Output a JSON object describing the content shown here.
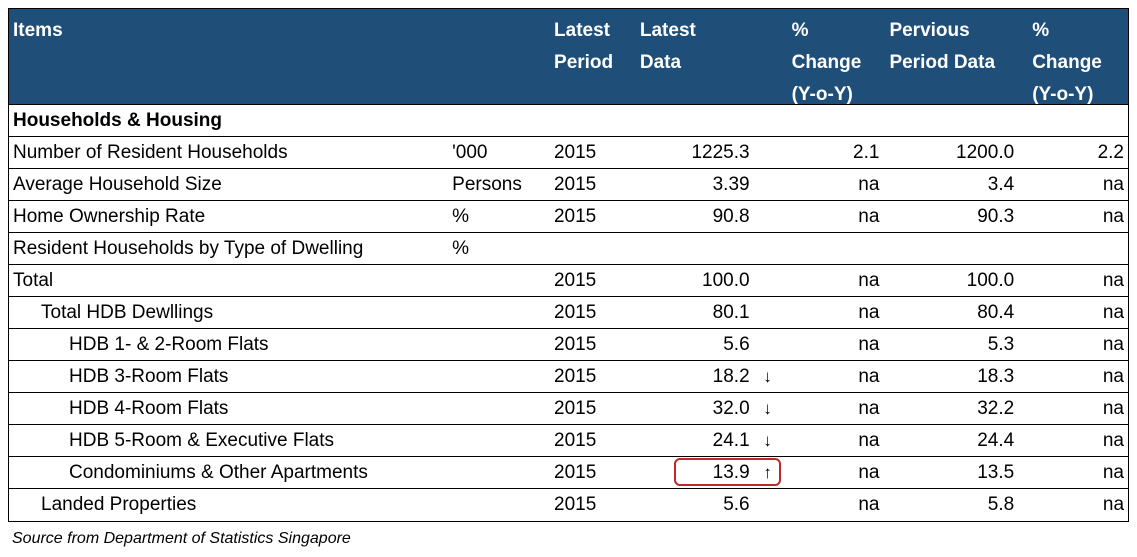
{
  "header": {
    "items": "Items",
    "unit": "",
    "latest_period": "Latest\nPeriod",
    "latest_data": "Latest\nData",
    "pct_change_1": "%\nChange\n(Y-o-Y)",
    "previous_data": "Pervious\nPeriod Data",
    "pct_change_2": "%\nChange\n(Y-o-Y)"
  },
  "colors": {
    "header_bg": "#1f4e79",
    "header_text": "#ffffff",
    "highlight_border": "#c0272d"
  },
  "rows": [
    {
      "item": "Households & Housing",
      "unit": "",
      "period": "",
      "latest": "",
      "arrow": "",
      "chg1": "",
      "prev": "",
      "chg2": ""
    },
    {
      "item": "Number of Resident Households",
      "unit": "'000",
      "period": "2015",
      "latest": "1225.3",
      "arrow": "",
      "chg1": "2.1",
      "prev": "1200.0",
      "chg2": "2.2"
    },
    {
      "item": "Average Household Size",
      "unit": "Persons",
      "period": "2015",
      "latest": "3.39",
      "arrow": "",
      "chg1": "na",
      "prev": "3.4",
      "chg2": "na"
    },
    {
      "item": "Home Ownership Rate",
      "unit": "%",
      "period": "2015",
      "latest": "90.8",
      "arrow": "",
      "chg1": "na",
      "prev": "90.3",
      "chg2": "na"
    },
    {
      "item": "Resident Households by Type of Dwelling",
      "unit": "%",
      "period": "",
      "latest": "",
      "arrow": "",
      "chg1": "",
      "prev": "",
      "chg2": ""
    },
    {
      "item": "Total",
      "unit": "",
      "period": "2015",
      "latest": "100.0",
      "arrow": "",
      "chg1": "na",
      "prev": "100.0",
      "chg2": "na"
    },
    {
      "item": "Total HDB Dewllings",
      "unit": "",
      "period": "2015",
      "latest": "80.1",
      "arrow": "",
      "chg1": "na",
      "prev": "80.4",
      "chg2": "na"
    },
    {
      "item": "HDB 1- & 2-Room Flats",
      "unit": "",
      "period": "2015",
      "latest": "5.6",
      "arrow": "",
      "chg1": "na",
      "prev": "5.3",
      "chg2": "na"
    },
    {
      "item": "HDB 3-Room Flats",
      "unit": "",
      "period": "2015",
      "latest": "18.2",
      "arrow": "↓",
      "chg1": "na",
      "prev": "18.3",
      "chg2": "na"
    },
    {
      "item": "HDB 4-Room Flats",
      "unit": "",
      "period": "2015",
      "latest": "32.0",
      "arrow": "↓",
      "chg1": "na",
      "prev": "32.2",
      "chg2": "na"
    },
    {
      "item": "HDB 5-Room & Executive Flats",
      "unit": "",
      "period": "2015",
      "latest": "24.1",
      "arrow": "↓",
      "chg1": "na",
      "prev": "24.4",
      "chg2": "na"
    },
    {
      "item": "Condominiums & Other Apartments",
      "unit": "",
      "period": "2015",
      "latest": "13.9",
      "arrow": "↑",
      "chg1": "na",
      "prev": "13.5",
      "chg2": "na"
    },
    {
      "item": "Landed Properties",
      "unit": "",
      "period": "2015",
      "latest": "5.6",
      "arrow": "",
      "chg1": "na",
      "prev": "5.8",
      "chg2": "na"
    }
  ],
  "source": "Source from Department of Statistics Singapore"
}
